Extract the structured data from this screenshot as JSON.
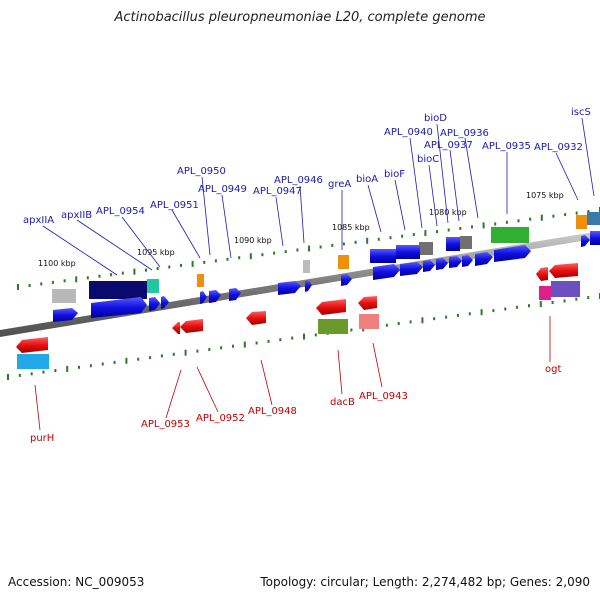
{
  "title": "Actinobacillus pleuropneumoniae L20, complete genome",
  "footer": {
    "accession": "Accession: NC_009053",
    "summary": "Topology: circular; Length: 2,274,482 bp; Genes: 2,090"
  },
  "scale_labels": [
    "1100 kbp",
    "1095 kbp",
    "1090 kbp",
    "1085 kbp",
    "1080 kbp",
    "1075 kbp"
  ],
  "top_strand_labels": [
    "apxIIA",
    "apxIIB",
    "APL_0954",
    "APL_0951",
    "APL_0950",
    "APL_0949",
    "APL_0947",
    "APL_0946",
    "greA",
    "bioA",
    "bioF",
    "bioC",
    "APL_0940",
    "bioD",
    "APL_0937",
    "APL_0936",
    "APL_0935",
    "APL_0932",
    "iscS"
  ],
  "bottom_strand_labels": [
    "purH",
    "APL_0953",
    "APL_0952",
    "APL_0948",
    "dacB",
    "APL_0943",
    "ogt"
  ],
  "colors": {
    "forward_gene": "#1010e0",
    "reverse_gene": "#e01010",
    "top_label": "#1a1ab0",
    "bottom_label": "#c00000",
    "backbone": "#888888",
    "tick": "#2a7a2a"
  }
}
